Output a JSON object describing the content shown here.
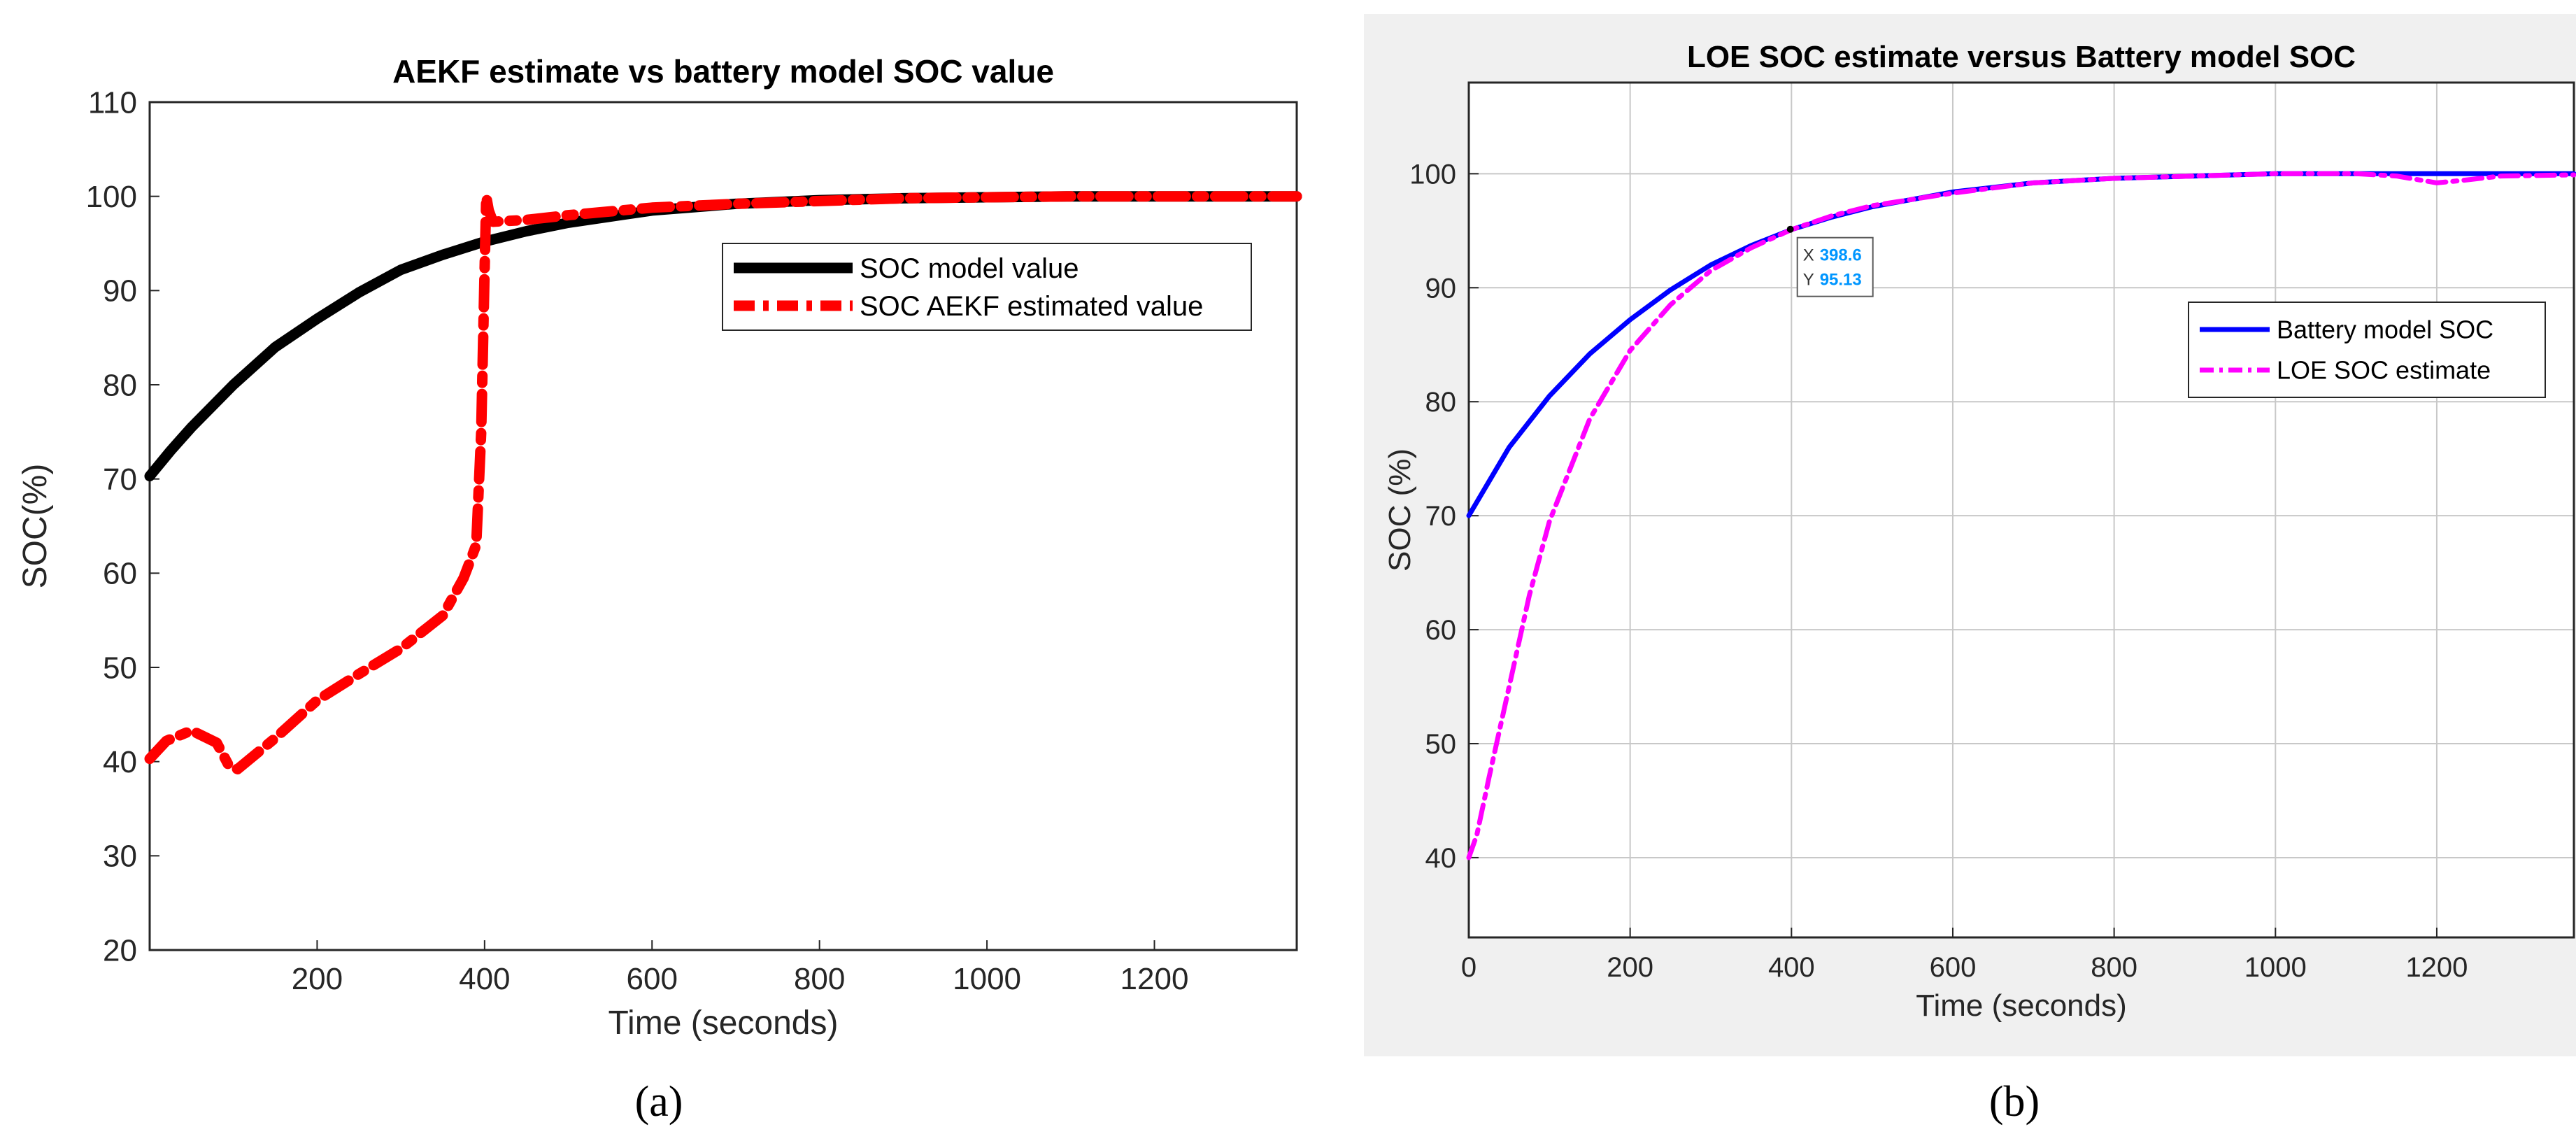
{
  "chart_data": [
    {
      "type": "line",
      "panel_label": "(a)",
      "title": "AEKF estimate vs battery model SOC value",
      "xlabel": "Time (seconds)",
      "ylabel": "SOC(%)",
      "xlim": [
        0,
        1370
      ],
      "ylim": [
        20,
        110
      ],
      "xticks": [
        200,
        400,
        600,
        800,
        1000,
        1200
      ],
      "yticks": [
        20,
        30,
        40,
        50,
        60,
        70,
        80,
        90,
        100,
        110
      ],
      "grid": false,
      "legend_position": "top-right",
      "series": [
        {
          "name": "SOC model value",
          "color": "#000000",
          "style": "solid",
          "x": [
            0,
            25,
            50,
            100,
            150,
            200,
            250,
            300,
            350,
            400,
            450,
            500,
            600,
            700,
            800,
            900,
            1000,
            1100,
            1200,
            1300,
            1370
          ],
          "y": [
            70.3,
            73.0,
            75.5,
            80.0,
            84.0,
            87.0,
            89.8,
            92.2,
            93.8,
            95.2,
            96.3,
            97.2,
            98.5,
            99.2,
            99.6,
            99.8,
            99.9,
            100,
            100,
            100,
            100
          ]
        },
        {
          "name": "SOC AEKF estimated value",
          "color": "#ff0000",
          "style": "dashdot",
          "x": [
            0,
            20,
            50,
            80,
            95,
            105,
            150,
            200,
            250,
            300,
            350,
            375,
            390,
            396,
            400,
            402,
            405,
            410,
            450,
            500,
            600,
            700,
            800,
            900,
            1000,
            1100,
            1200,
            1300,
            1370
          ],
          "y": [
            40.3,
            42.2,
            43.3,
            42.0,
            39.5,
            39.2,
            42.5,
            46.5,
            49.3,
            52.0,
            55.5,
            59.5,
            63.0,
            75.0,
            92.0,
            100.0,
            98.5,
            97.3,
            97.5,
            98.0,
            98.8,
            99.2,
            99.5,
            99.8,
            99.9,
            100,
            100,
            100,
            100
          ]
        }
      ]
    },
    {
      "type": "line",
      "panel_label": "(b)",
      "title": "LOE SOC  estimate versus Battery model SOC",
      "xlabel": "Time (seconds)",
      "ylabel": "SOC (%)",
      "xlim": [
        0,
        1370
      ],
      "ylim": [
        33,
        108
      ],
      "xticks": [
        0,
        200,
        400,
        600,
        800,
        1000,
        1200
      ],
      "yticks": [
        40,
        50,
        60,
        70,
        80,
        90,
        100
      ],
      "grid": true,
      "legend_position": "right",
      "datatip": {
        "x_label": "X",
        "x_value": "398.6",
        "y_label": "Y",
        "y_value": "95.13",
        "x": 398.6,
        "y": 95.13
      },
      "series": [
        {
          "name": "Battery  model SOC",
          "color": "#0000ff",
          "style": "solid",
          "x": [
            0,
            25,
            50,
            100,
            150,
            200,
            250,
            300,
            350,
            400,
            450,
            500,
            600,
            700,
            800,
            900,
            1000,
            1100,
            1200,
            1300,
            1370
          ],
          "y": [
            70.0,
            73.0,
            76.0,
            80.5,
            84.2,
            87.2,
            89.8,
            92.0,
            93.7,
            95.1,
            96.2,
            97.1,
            98.4,
            99.2,
            99.6,
            99.8,
            100,
            100,
            100,
            100,
            100
          ]
        },
        {
          "name": "LOE SOC estimate",
          "color": "#ff00ff",
          "style": "dashdot",
          "x": [
            0,
            10,
            25,
            50,
            75,
            100,
            150,
            200,
            250,
            300,
            350,
            400,
            450,
            500,
            600,
            700,
            800,
            900,
            1000,
            1100,
            1150,
            1200,
            1230,
            1280,
            1370
          ],
          "y": [
            40.0,
            42.0,
            47.0,
            55.0,
            63.0,
            69.5,
            78.5,
            84.5,
            88.5,
            91.5,
            93.5,
            95.1,
            96.3,
            97.2,
            98.3,
            99.2,
            99.6,
            99.8,
            100,
            100,
            99.8,
            99.2,
            99.4,
            99.8,
            99.9
          ]
        }
      ]
    }
  ]
}
